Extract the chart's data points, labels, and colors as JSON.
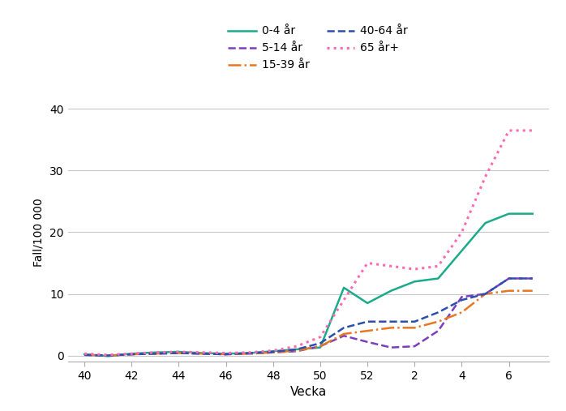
{
  "title": "",
  "ylabel": "Fall/100 000",
  "xlabel": "Vecka",
  "ylim": [
    -1,
    41
  ],
  "yticks": [
    0,
    10,
    20,
    30,
    40
  ],
  "xtick_labels": [
    "40",
    "42",
    "44",
    "46",
    "48",
    "50",
    "52",
    "2",
    "4",
    "6"
  ],
  "xtick_positions": [
    40,
    42,
    44,
    46,
    48,
    50,
    52,
    54,
    56,
    58
  ],
  "background_color": "#ffffff",
  "grid_color": "#c8c8c8",
  "series": [
    {
      "label": "0-4 år",
      "color": "#1aab8b",
      "linestyle": "solid",
      "linewidth": 1.8,
      "x": [
        40,
        41,
        42,
        43,
        44,
        45,
        46,
        47,
        48,
        49,
        50,
        51,
        52,
        53,
        54,
        55,
        56,
        57,
        58,
        59
      ],
      "y": [
        0.2,
        -0.1,
        0.3,
        0.5,
        0.6,
        0.4,
        0.3,
        0.4,
        0.7,
        1.0,
        1.3,
        11.0,
        8.5,
        10.5,
        12.0,
        12.5,
        17.0,
        21.5,
        23.0,
        23.0
      ]
    },
    {
      "label": "5-14 år",
      "color": "#7b3fbe",
      "linestyle": "dashed",
      "linewidth": 1.8,
      "x": [
        40,
        41,
        42,
        43,
        44,
        45,
        46,
        47,
        48,
        49,
        50,
        51,
        52,
        53,
        54,
        55,
        56,
        57,
        58,
        59
      ],
      "y": [
        0.1,
        0.0,
        0.2,
        0.3,
        0.4,
        0.3,
        0.2,
        0.3,
        0.5,
        0.7,
        1.5,
        3.2,
        2.2,
        1.3,
        1.5,
        4.0,
        9.5,
        10.0,
        12.5,
        12.5
      ]
    },
    {
      "label": "15-39 år",
      "color": "#e87722",
      "linestyle": "dashdot",
      "linewidth": 1.8,
      "x": [
        40,
        41,
        42,
        43,
        44,
        45,
        46,
        47,
        48,
        49,
        50,
        51,
        52,
        53,
        54,
        55,
        56,
        57,
        58,
        59
      ],
      "y": [
        0.1,
        0.0,
        0.2,
        0.3,
        0.4,
        0.3,
        0.2,
        0.3,
        0.5,
        0.8,
        1.5,
        3.5,
        4.0,
        4.5,
        4.5,
        5.5,
        7.0,
        10.0,
        10.5,
        10.5
      ]
    },
    {
      "label": "40-64 år",
      "color": "#2c4fad",
      "linestyle": "dashed",
      "linewidth": 1.8,
      "x": [
        40,
        41,
        42,
        43,
        44,
        45,
        46,
        47,
        48,
        49,
        50,
        51,
        52,
        53,
        54,
        55,
        56,
        57,
        58,
        59
      ],
      "y": [
        0.1,
        0.0,
        0.2,
        0.3,
        0.4,
        0.3,
        0.2,
        0.4,
        0.6,
        1.0,
        2.0,
        4.5,
        5.5,
        5.5,
        5.5,
        7.0,
        9.0,
        10.0,
        12.5,
        12.5
      ]
    },
    {
      "label": "65 år+",
      "color": "#ff69b4",
      "linestyle": "dotted",
      "linewidth": 2.2,
      "x": [
        40,
        41,
        42,
        43,
        44,
        45,
        46,
        47,
        48,
        49,
        50,
        51,
        52,
        53,
        54,
        55,
        56,
        57,
        58,
        59
      ],
      "y": [
        0.3,
        0.1,
        0.3,
        0.5,
        0.6,
        0.5,
        0.4,
        0.5,
        0.8,
        1.5,
        3.0,
        9.0,
        15.0,
        14.5,
        14.0,
        14.5,
        20.0,
        29.0,
        36.5,
        36.5
      ]
    }
  ],
  "xlim_left": 39.3,
  "xlim_right": 59.7,
  "legend_order": [
    0,
    1,
    2,
    3,
    4
  ],
  "legend_ncol": 2,
  "legend_fontsize": 10,
  "legend_handlelength": 2.5,
  "legend_columnspacing": 1.5
}
